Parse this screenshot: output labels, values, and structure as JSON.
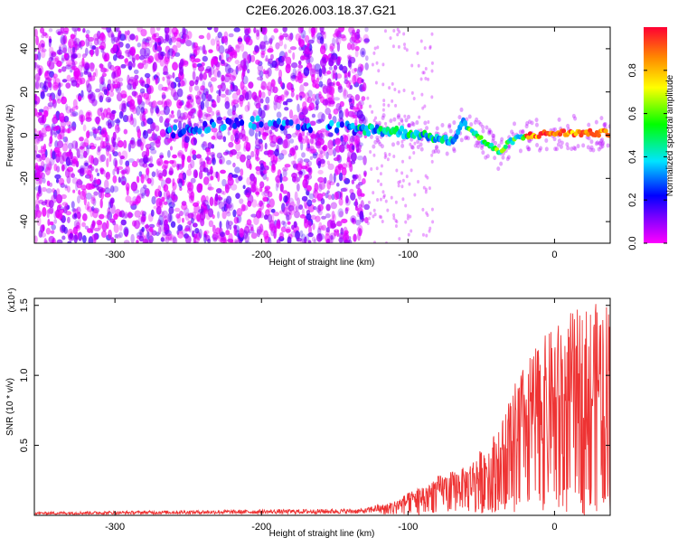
{
  "title": "C2E6.2026.003.18.37.G21",
  "chart_data": [
    {
      "type": "heatmap",
      "xlabel": "Height of straight line (km)",
      "ylabel": "Frequency (Hz)",
      "xlim": [
        -355,
        38
      ],
      "ylim": [
        -50,
        50
      ],
      "xticks": [
        -300,
        -200,
        -100,
        0
      ],
      "yticks": [
        -40,
        -20,
        0,
        20,
        40
      ],
      "colorbar": {
        "label": "Normalized spectral amplitude",
        "range": [
          0.0,
          1.0
        ],
        "ticks": [
          "0.0",
          "0.2",
          "0.4",
          "0.6",
          "0.8"
        ],
        "colors": [
          "#ff00ff",
          "#7a00ff",
          "#0000ff",
          "#00e5ff",
          "#00ff00",
          "#ffff00",
          "#ff8800",
          "#ff0033"
        ]
      },
      "ridge": [
        {
          "x": -265,
          "y": 1
        },
        {
          "x": -240,
          "y": 4
        },
        {
          "x": -220,
          "y": 5
        },
        {
          "x": -200,
          "y": 6
        },
        {
          "x": -180,
          "y": 5
        },
        {
          "x": -160,
          "y": 4
        },
        {
          "x": -135,
          "y": 3
        },
        {
          "x": -110,
          "y": 2
        },
        {
          "x": -90,
          "y": 0
        },
        {
          "x": -70,
          "y": -3
        },
        {
          "x": -62,
          "y": 6
        },
        {
          "x": -50,
          "y": -2
        },
        {
          "x": -38,
          "y": -8
        },
        {
          "x": -28,
          "y": -2
        },
        {
          "x": -15,
          "y": 0
        },
        {
          "x": 0,
          "y": 1
        },
        {
          "x": 20,
          "y": 1
        },
        {
          "x": 38,
          "y": 1
        }
      ]
    },
    {
      "type": "line",
      "xlabel": "Height of straight line (km)",
      "ylabel": "SNR (10 * v/v)",
      "scale_note": "(x10⁴)",
      "xlim": [
        -355,
        38
      ],
      "ylim": [
        0,
        1.55
      ],
      "xticks": [
        -300,
        -200,
        -100,
        0
      ],
      "yticks": [
        "0.5",
        "1.0",
        "1.5"
      ],
      "line_color": "#ee3333",
      "envelope": [
        {
          "x": -355,
          "y": 0.02
        },
        {
          "x": -250,
          "y": 0.03
        },
        {
          "x": -130,
          "y": 0.04
        },
        {
          "x": -110,
          "y": 0.1
        },
        {
          "x": -80,
          "y": 0.28
        },
        {
          "x": -60,
          "y": 0.35
        },
        {
          "x": -40,
          "y": 0.6
        },
        {
          "x": -25,
          "y": 1.0
        },
        {
          "x": -10,
          "y": 1.25
        },
        {
          "x": 10,
          "y": 1.45
        },
        {
          "x": 38,
          "y": 1.55
        }
      ]
    }
  ]
}
